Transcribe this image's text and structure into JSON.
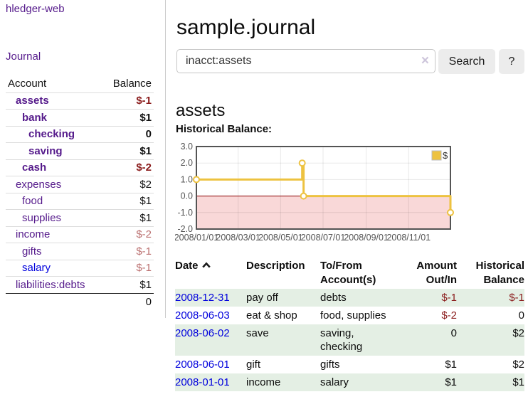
{
  "app": {
    "title": "hledger-web"
  },
  "sidebar": {
    "journal_link": "Journal",
    "accounts_table": {
      "headers": [
        "Account",
        "Balance"
      ],
      "rows": [
        {
          "name": "assets",
          "indent": 1,
          "bold": true,
          "balance": "$-1",
          "negative": "strong"
        },
        {
          "name": "bank",
          "indent": 2,
          "bold": true,
          "balance": "$1",
          "negative": null
        },
        {
          "name": "checking",
          "indent": 3,
          "bold": true,
          "balance": "0",
          "negative": null
        },
        {
          "name": "saving",
          "indent": 3,
          "bold": true,
          "balance": "$1",
          "negative": null
        },
        {
          "name": "cash",
          "indent": 2,
          "bold": true,
          "balance": "$-2",
          "negative": "strong"
        },
        {
          "name": "expenses",
          "indent": 1,
          "bold": false,
          "balance": "$2",
          "negative": null
        },
        {
          "name": "food",
          "indent": 2,
          "bold": false,
          "balance": "$1",
          "negative": null
        },
        {
          "name": "supplies",
          "indent": 2,
          "bold": false,
          "balance": "$1",
          "negative": null
        },
        {
          "name": "income",
          "indent": 1,
          "bold": false,
          "balance": "$-2",
          "negative": "soft"
        },
        {
          "name": "gifts",
          "indent": 2,
          "bold": false,
          "balance": "$-1",
          "negative": "soft"
        },
        {
          "name": "salary",
          "indent": 2,
          "bold": false,
          "balance": "$-1",
          "negative": "soft",
          "link_color": "blue"
        },
        {
          "name": "liabilities:debts",
          "indent": 1,
          "bold": false,
          "balance": "$1",
          "negative": null
        }
      ],
      "total": "0"
    }
  },
  "main": {
    "title": "sample.journal",
    "search": {
      "value": "inacct:assets",
      "clear_icon": "×",
      "button_label": "Search",
      "help_label": "?"
    },
    "account_heading": "assets",
    "chart_label": "Historical Balance:"
  },
  "chart_data": {
    "type": "line",
    "step": true,
    "title": "Historical Balance:",
    "x_range": [
      "2008-01-01",
      "2008-12-31"
    ],
    "ylim": [
      -2.0,
      3.0
    ],
    "ytick_labels": [
      "3.0",
      "2.0",
      "1.0",
      "0.0",
      "-1.0",
      "-2.0"
    ],
    "ytick_values": [
      3,
      2,
      1,
      0,
      -1,
      -2
    ],
    "xticks": [
      {
        "t": "2008-01-01",
        "label": "2008/01/01"
      },
      {
        "t": "2008-03-01",
        "label": "2008/03/01"
      },
      {
        "t": "2008-05-01",
        "label": "2008/05/01"
      },
      {
        "t": "2008-07-01",
        "label": "2008/07/01"
      },
      {
        "t": "2008-09-01",
        "label": "2008/09/01"
      },
      {
        "t": "2008-11-01",
        "label": "2008/11/01"
      }
    ],
    "series": [
      {
        "name": "$",
        "color": "#edc240",
        "points": [
          [
            "2008-01-01",
            1
          ],
          [
            "2008-06-01",
            2
          ],
          [
            "2008-06-03",
            0
          ],
          [
            "2008-12-31",
            -1
          ]
        ]
      }
    ],
    "legend": {
      "label": "$",
      "position": "top-right"
    },
    "grid": true,
    "negative_region_color": "#f9d8d8",
    "zero_line_color": "#8b0000",
    "border_color": "#545454",
    "tick_text_color": "#545454"
  },
  "register_table": {
    "headers": {
      "date": "Date",
      "sort_icon": "sort-ascending",
      "description": "Description",
      "accounts": "To/From\nAccount(s)",
      "amount": "Amount\nOut/In",
      "balance": "Historical\nBalance"
    },
    "rows": [
      {
        "date": "2008-12-31",
        "description": "pay off",
        "accounts": "debts",
        "amount": "$-1",
        "amount_negative": true,
        "balance": "$-1",
        "balance_negative": true
      },
      {
        "date": "2008-06-03",
        "description": "eat & shop",
        "accounts": "food, supplies",
        "amount": "$-2",
        "amount_negative": true,
        "balance": "0",
        "balance_negative": false
      },
      {
        "date": "2008-06-02",
        "description": "save",
        "accounts": "saving, checking",
        "amount": "0",
        "amount_negative": false,
        "balance": "$2",
        "balance_negative": false
      },
      {
        "date": "2008-06-01",
        "description": "gift",
        "accounts": "gifts",
        "amount": "$1",
        "amount_negative": false,
        "balance": "$2",
        "balance_negative": false
      },
      {
        "date": "2008-01-01",
        "description": "income",
        "accounts": "salary",
        "amount": "$1",
        "amount_negative": false,
        "balance": "$1",
        "balance_negative": false
      }
    ]
  },
  "colors": {
    "link_purple": "#551a8b",
    "link_blue": "#0000dd",
    "negative_strong": "#8b1d1d",
    "negative_soft": "#bb7070",
    "row_stripe_green": "#e4efe4",
    "chart_series": "#edc240",
    "chart_negative_bg": "#f9d8d8",
    "chart_zero_line": "#8b0000"
  }
}
